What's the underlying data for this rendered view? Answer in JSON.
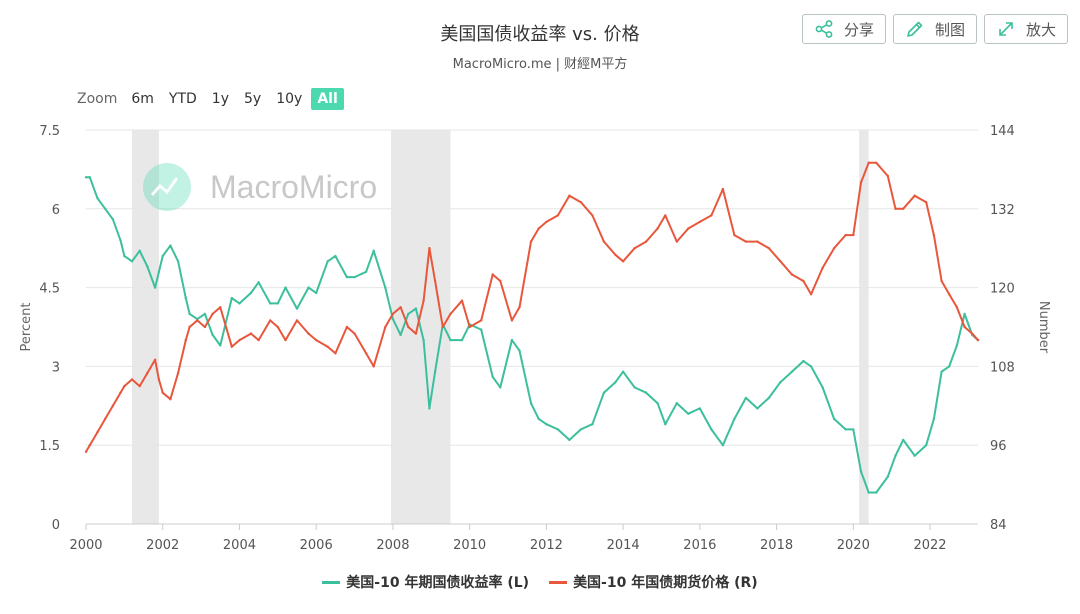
{
  "header": {
    "title": "美国国债收益率 vs. 价格",
    "subtitle": "MacroMicro.me | 财經M平方"
  },
  "toolbar": {
    "share_label": "分享",
    "draw_label": "制图",
    "expand_label": "放大"
  },
  "zoom": {
    "label": "Zoom",
    "options": [
      "6m",
      "YTD",
      "1y",
      "5y",
      "10y",
      "All"
    ],
    "active": "All"
  },
  "watermark": "MacroMicro",
  "colors": {
    "left_series": "#3cbf9c",
    "right_series": "#e8573c",
    "recession": "#e8e8e8",
    "active_zoom": "#4dd9b0"
  },
  "chart_data": {
    "type": "line",
    "x_range": [
      2000,
      2023.25
    ],
    "x_ticks": [
      "2000",
      "2002",
      "2004",
      "2006",
      "2008",
      "2010",
      "2012",
      "2014",
      "2016",
      "2018",
      "2020",
      "2022"
    ],
    "y_left": {
      "label": "Percent",
      "range": [
        0,
        7.5
      ],
      "ticks": [
        "0",
        "1.5",
        "3",
        "4.5",
        "6",
        "7.5"
      ]
    },
    "y_right": {
      "label": "Number",
      "range": [
        84,
        144
      ],
      "ticks": [
        "84",
        "96",
        "108",
        "120",
        "132",
        "144"
      ]
    },
    "grid": true,
    "legend_position": "bottom-center",
    "shaded_periods": [
      [
        2001.2,
        2001.9
      ],
      [
        2007.95,
        2009.5
      ],
      [
        2020.15,
        2020.4
      ]
    ],
    "series": [
      {
        "name": "美国-10 年期国债收益率 (L)",
        "axis": "left",
        "x": [
          2000.0,
          2000.1,
          2000.3,
          2000.5,
          2000.7,
          2000.9,
          2001.0,
          2001.2,
          2001.4,
          2001.6,
          2001.8,
          2001.9,
          2002.0,
          2002.2,
          2002.4,
          2002.6,
          2002.7,
          2002.9,
          2003.1,
          2003.3,
          2003.5,
          2003.8,
          2004.0,
          2004.3,
          2004.5,
          2004.8,
          2005.0,
          2005.2,
          2005.5,
          2005.8,
          2006.0,
          2006.3,
          2006.5,
          2006.8,
          2007.0,
          2007.3,
          2007.5,
          2007.8,
          2008.0,
          2008.2,
          2008.4,
          2008.6,
          2008.8,
          2008.95,
          2009.1,
          2009.3,
          2009.5,
          2009.8,
          2010.0,
          2010.3,
          2010.6,
          2010.8,
          2011.1,
          2011.3,
          2011.6,
          2011.8,
          2012.0,
          2012.3,
          2012.6,
          2012.9,
          2013.2,
          2013.5,
          2013.8,
          2014.0,
          2014.3,
          2014.6,
          2014.9,
          2015.1,
          2015.4,
          2015.7,
          2016.0,
          2016.3,
          2016.6,
          2016.9,
          2017.2,
          2017.5,
          2017.8,
          2018.1,
          2018.4,
          2018.7,
          2018.9,
          2019.2,
          2019.5,
          2019.8,
          2020.0,
          2020.2,
          2020.4,
          2020.6,
          2020.9,
          2021.1,
          2021.3,
          2021.6,
          2021.9,
          2022.1,
          2022.3,
          2022.5,
          2022.7,
          2022.9,
          2023.1,
          2023.25
        ],
        "y": [
          6.6,
          6.6,
          6.2,
          6.0,
          5.8,
          5.4,
          5.1,
          5.0,
          5.2,
          4.9,
          4.5,
          4.8,
          5.1,
          5.3,
          5.0,
          4.3,
          4.0,
          3.9,
          4.0,
          3.6,
          3.4,
          4.3,
          4.2,
          4.4,
          4.6,
          4.2,
          4.2,
          4.5,
          4.1,
          4.5,
          4.4,
          5.0,
          5.1,
          4.7,
          4.7,
          4.8,
          5.2,
          4.5,
          3.9,
          3.6,
          4.0,
          4.1,
          3.5,
          2.2,
          2.9,
          3.8,
          3.5,
          3.5,
          3.8,
          3.7,
          2.8,
          2.6,
          3.5,
          3.3,
          2.3,
          2.0,
          1.9,
          1.8,
          1.6,
          1.8,
          1.9,
          2.5,
          2.7,
          2.9,
          2.6,
          2.5,
          2.3,
          1.9,
          2.3,
          2.1,
          2.2,
          1.8,
          1.5,
          2.0,
          2.4,
          2.2,
          2.4,
          2.7,
          2.9,
          3.1,
          3.0,
          2.6,
          2.0,
          1.8,
          1.8,
          1.0,
          0.6,
          0.6,
          0.9,
          1.3,
          1.6,
          1.3,
          1.5,
          2.0,
          2.9,
          3.0,
          3.4,
          4.0,
          3.6,
          3.5
        ]
      },
      {
        "name": "美国-10 年国债期货价格 (R)",
        "axis": "right",
        "x": [
          2000.0,
          2000.1,
          2000.3,
          2000.5,
          2000.7,
          2000.9,
          2001.0,
          2001.2,
          2001.4,
          2001.6,
          2001.8,
          2001.9,
          2002.0,
          2002.2,
          2002.4,
          2002.6,
          2002.7,
          2002.9,
          2003.1,
          2003.3,
          2003.5,
          2003.8,
          2004.0,
          2004.3,
          2004.5,
          2004.8,
          2005.0,
          2005.2,
          2005.5,
          2005.8,
          2006.0,
          2006.3,
          2006.5,
          2006.8,
          2007.0,
          2007.3,
          2007.5,
          2007.8,
          2008.0,
          2008.2,
          2008.4,
          2008.6,
          2008.8,
          2008.95,
          2009.1,
          2009.3,
          2009.5,
          2009.8,
          2010.0,
          2010.3,
          2010.6,
          2010.8,
          2011.1,
          2011.3,
          2011.6,
          2011.8,
          2012.0,
          2012.3,
          2012.6,
          2012.9,
          2013.2,
          2013.5,
          2013.8,
          2014.0,
          2014.3,
          2014.6,
          2014.9,
          2015.1,
          2015.4,
          2015.7,
          2016.0,
          2016.3,
          2016.6,
          2016.9,
          2017.2,
          2017.5,
          2017.8,
          2018.1,
          2018.4,
          2018.7,
          2018.9,
          2019.2,
          2019.5,
          2019.8,
          2020.0,
          2020.2,
          2020.4,
          2020.6,
          2020.9,
          2021.1,
          2021.3,
          2021.6,
          2021.9,
          2022.1,
          2022.3,
          2022.5,
          2022.7,
          2022.9,
          2023.1,
          2023.25
        ],
        "y": [
          95,
          96,
          98,
          100,
          102,
          104,
          105,
          106,
          105,
          107,
          109,
          106,
          104,
          103,
          107,
          112,
          114,
          115,
          114,
          116,
          117,
          111,
          112,
          113,
          112,
          115,
          114,
          112,
          115,
          113,
          112,
          111,
          110,
          114,
          113,
          110,
          108,
          114,
          116,
          117,
          114,
          113,
          118,
          126,
          121,
          114,
          116,
          118,
          114,
          115,
          122,
          121,
          115,
          117,
          127,
          129,
          130,
          131,
          134,
          133,
          131,
          127,
          125,
          124,
          126,
          127,
          129,
          131,
          127,
          129,
          130,
          131,
          135,
          128,
          127,
          127,
          126,
          124,
          122,
          121,
          119,
          123,
          126,
          128,
          128,
          136,
          139,
          139,
          137,
          132,
          132,
          134,
          133,
          128,
          121,
          119,
          117,
          114,
          113,
          112
        ]
      }
    ]
  }
}
